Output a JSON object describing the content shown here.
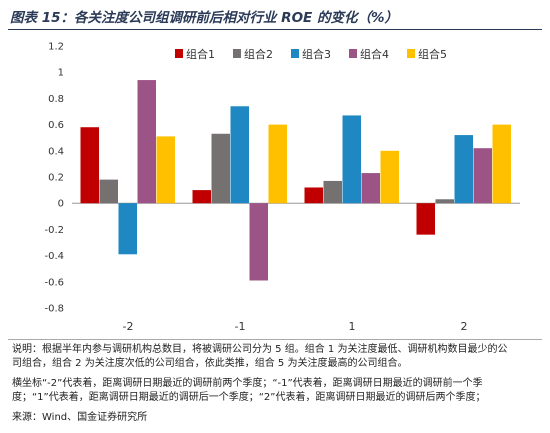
{
  "title": "图表 15：各关注度公司组调研前后相对行业 ROE 的变化（%）",
  "chart_data": {
    "type": "bar",
    "categories": [
      "-2",
      "-1",
      "1",
      "2"
    ],
    "ylim": [
      -0.8,
      1.2
    ],
    "yticks": [
      -0.8,
      -0.6,
      -0.4,
      -0.2,
      0,
      0.2,
      0.4,
      0.6,
      0.8,
      1,
      1.2
    ],
    "legend_position": "top",
    "grid": false,
    "series": [
      {
        "name": "组合1",
        "color": "#c00000",
        "values": [
          0.58,
          0.1,
          0.12,
          -0.24
        ]
      },
      {
        "name": "组合2",
        "color": "#767171",
        "values": [
          0.18,
          0.53,
          0.17,
          0.03
        ]
      },
      {
        "name": "组合3",
        "color": "#1f87c2",
        "values": [
          -0.39,
          0.74,
          0.67,
          0.52
        ]
      },
      {
        "name": "组合4",
        "color": "#9c5486",
        "values": [
          0.94,
          -0.59,
          0.23,
          0.42
        ]
      },
      {
        "name": "组合5",
        "color": "#ffc000",
        "values": [
          0.51,
          0.6,
          0.4,
          0.6
        ]
      }
    ]
  },
  "notes": {
    "line1": "说明：根据半年内参与调研机构总数目，将被调研公司分为 5 组。组合 1 为关注度最低、调研机构数目最少的公",
    "line2": "司组合，组合 2 为关注度次低的公司组合，依此类推，组合 5 为关注度最高的公司组合。",
    "line3": "横坐标“-2”代表着，距离调研日期最近的调研前两个季度；“-1”代表着，距离调研日期最近的调研前一个季",
    "line4": "度；“1”代表着，距离调研日期最近的调研后一个季度；“2”代表着，距离调研日期最近的调研后两个季度；",
    "source": "来源：Wind、国金证券研究所"
  }
}
